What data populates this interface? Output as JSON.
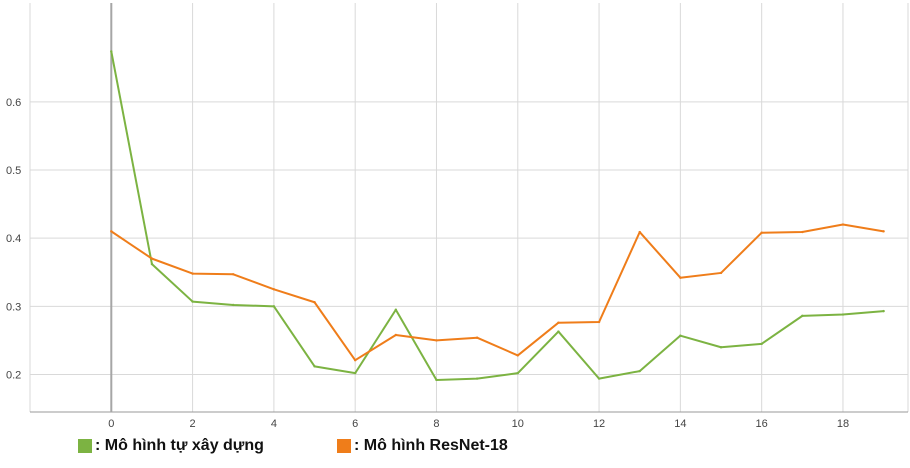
{
  "chart_data": {
    "type": "line",
    "x": [
      0,
      1,
      2,
      3,
      4,
      5,
      6,
      7,
      8,
      9,
      10,
      11,
      12,
      13,
      14,
      15,
      16,
      17,
      18,
      19
    ],
    "x_ticks": [
      "0",
      "2",
      "4",
      "6",
      "8",
      "10",
      "12",
      "14",
      "16",
      "18"
    ],
    "y_ticks": [
      "0.2",
      "0.3",
      "0.4",
      "0.5",
      "0.6"
    ],
    "xlim": [
      -2,
      19.6
    ],
    "ylim": [
      0.145,
      0.745
    ],
    "grid": true,
    "legend_position": "bottom-left",
    "series": [
      {
        "name": "Mô hình tự xây dựng",
        "legend_label": ": Mô hình tự xây dựng",
        "color": "#7cb342",
        "values": [
          0.674,
          0.362,
          0.307,
          0.302,
          0.3,
          0.212,
          0.202,
          0.295,
          0.192,
          0.194,
          0.202,
          0.263,
          0.194,
          0.205,
          0.257,
          0.24,
          0.245,
          0.286,
          0.288,
          0.293
        ]
      },
      {
        "name": "Mô hình ResNet-18",
        "legend_label": ": Mô hình ResNet-18",
        "color": "#ef7d1a",
        "values": [
          0.41,
          0.37,
          0.348,
          0.347,
          0.325,
          0.306,
          0.221,
          0.258,
          0.25,
          0.254,
          0.228,
          0.276,
          0.277,
          0.409,
          0.342,
          0.349,
          0.408,
          0.409,
          0.42,
          0.41
        ]
      }
    ]
  }
}
